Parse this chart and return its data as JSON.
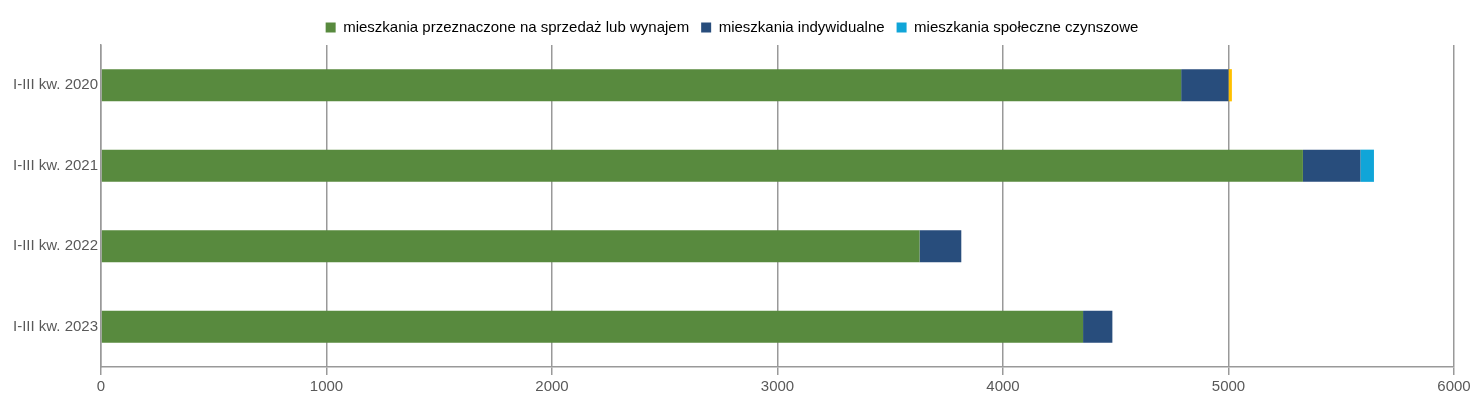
{
  "chart_data": {
    "type": "bar",
    "orientation": "horizontal",
    "stacked": true,
    "categories": [
      "I-III kw. 2020",
      "I-III kw. 2021",
      "I-III kw. 2022",
      "I-III kw. 2023"
    ],
    "series": [
      {
        "name": "mieszkania przeznaczone na sprzedaż lub wynajem",
        "color": "#588a3e",
        "values": [
          4790,
          5330,
          3630,
          4355
        ]
      },
      {
        "name": "mieszkania indywidualne",
        "color": "#284d7c",
        "values": [
          210,
          255,
          185,
          130
        ]
      },
      {
        "name": "mieszkania społeczne czynszowe",
        "color": "#10a5d8",
        "colors": [
          "#ffc000",
          "#10a5d8",
          "#10a5d8",
          "#10a5d8"
        ],
        "values": [
          15,
          60,
          null,
          null
        ]
      }
    ],
    "xlim": [
      0,
      6000
    ],
    "xticks": [
      0,
      1000,
      2000,
      3000,
      4000,
      5000,
      6000
    ],
    "grid": "x",
    "legend": "top"
  }
}
